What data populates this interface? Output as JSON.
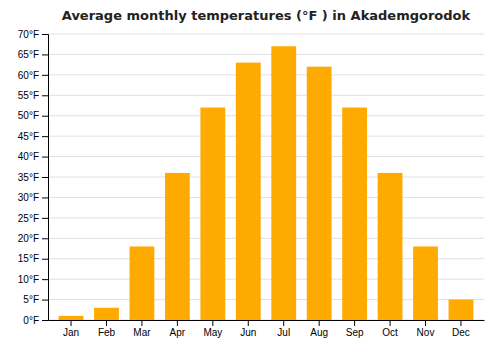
{
  "chart_data": {
    "type": "bar",
    "title": "Average monthly temperatures (°F ) in Akademgorodok",
    "categories": [
      "Jan",
      "Feb",
      "Mar",
      "Apr",
      "May",
      "Jun",
      "Jul",
      "Aug",
      "Sep",
      "Oct",
      "Nov",
      "Dec"
    ],
    "values": [
      1,
      3,
      18,
      36,
      52,
      63,
      67,
      62,
      52,
      36,
      18,
      5
    ],
    "color": "#FFAA00",
    "ylim": [
      0,
      70
    ],
    "yticks": [
      {
        "value": 0,
        "label": "0°F"
      },
      {
        "value": 5,
        "label": "5°F"
      },
      {
        "value": 10,
        "label": "10°F"
      },
      {
        "value": 15,
        "label": "15°F"
      },
      {
        "value": 20,
        "label": "20°F"
      },
      {
        "value": 25,
        "label": "25°F"
      },
      {
        "value": 30,
        "label": "30°F"
      },
      {
        "value": 35,
        "label": "35°F"
      },
      {
        "value": 40,
        "label": "40°F"
      },
      {
        "value": 45,
        "label": "45°F"
      },
      {
        "value": 50,
        "label": "50°F"
      },
      {
        "value": 55,
        "label": "55°F"
      },
      {
        "value": 60,
        "label": "60°F"
      },
      {
        "value": 65,
        "label": "65°F"
      },
      {
        "value": 70,
        "label": "70°F"
      }
    ],
    "grid": true
  }
}
